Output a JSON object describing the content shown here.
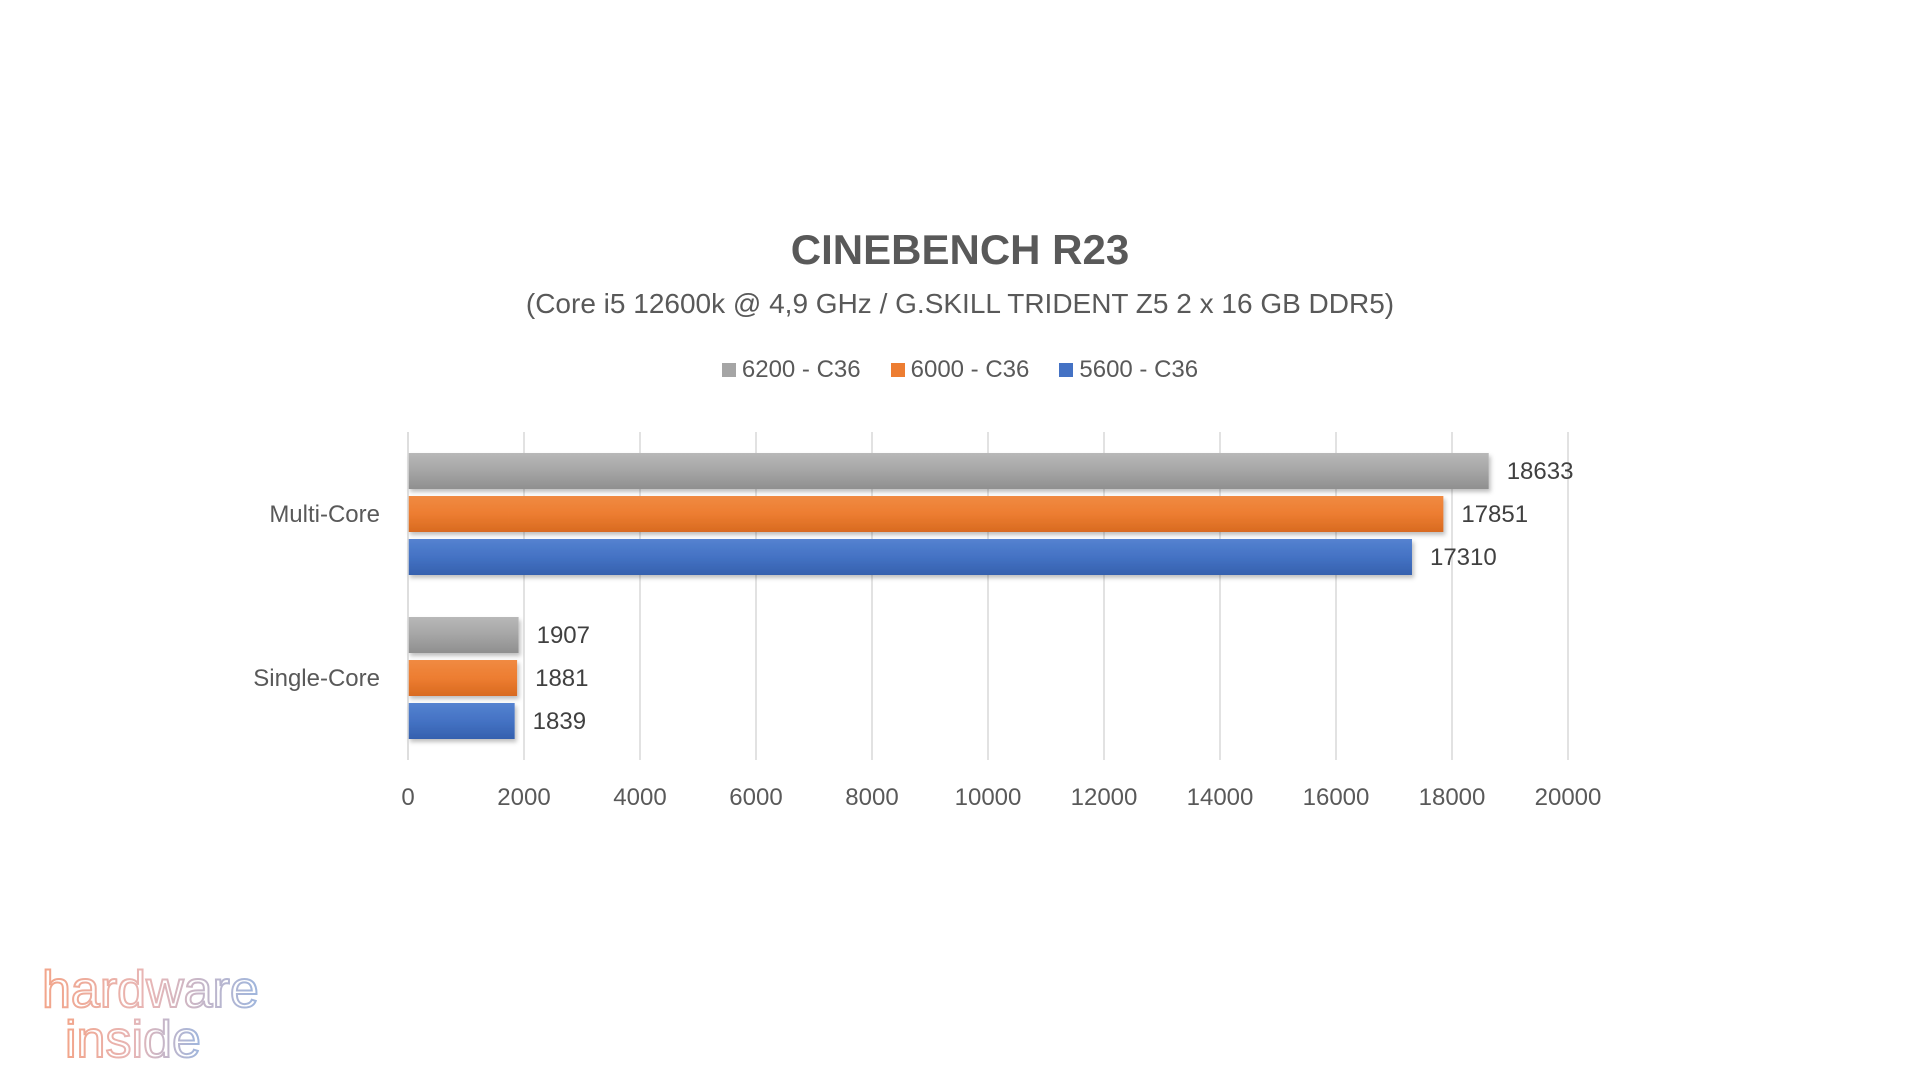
{
  "chart_data": {
    "type": "bar",
    "orientation": "horizontal",
    "title": "CINEBENCH R23",
    "subtitle": "(Core i5 12600k @ 4,9 GHz / G.SKILL TRIDENT Z5  2 x 16 GB DDR5)",
    "categories": [
      "Multi-Core",
      "Single-Core"
    ],
    "series": [
      {
        "name": "6200 - C36",
        "color": "#a5a5a5",
        "values": [
          18633,
          1907
        ]
      },
      {
        "name": "6000 - C36",
        "color": "#ed7d31",
        "values": [
          17851,
          1881
        ]
      },
      {
        "name": "5600 - C36",
        "color": "#4472c4",
        "values": [
          17310,
          1839
        ]
      }
    ],
    "xlim": [
      0,
      20000
    ],
    "x_ticks": [
      "0",
      "2000",
      "4000",
      "6000",
      "8000",
      "10000",
      "12000",
      "14000",
      "16000",
      "18000",
      "20000"
    ],
    "grid": true,
    "legend_position": "top"
  },
  "logo": {
    "line1": "hardware",
    "line2": "inside"
  }
}
